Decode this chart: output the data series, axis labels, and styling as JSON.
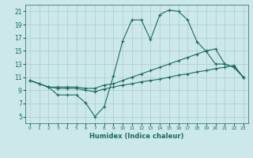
{
  "xlabel": "Humidex (Indice chaleur)",
  "background_color": "#cce8e8",
  "grid_color": "#aacccc",
  "line_color": "#1a6b5a",
  "xlim": [
    -0.5,
    23.5
  ],
  "ylim": [
    4,
    22
  ],
  "xticks": [
    0,
    1,
    2,
    3,
    4,
    5,
    6,
    7,
    8,
    9,
    10,
    11,
    12,
    13,
    14,
    15,
    16,
    17,
    18,
    19,
    20,
    21,
    22,
    23
  ],
  "yticks": [
    5,
    7,
    9,
    11,
    13,
    15,
    17,
    19,
    21
  ],
  "series1_x": [
    0,
    1,
    2,
    3,
    4,
    5,
    6,
    7,
    8,
    9,
    10,
    11,
    12,
    13,
    14,
    15,
    16,
    17,
    18,
    19,
    20,
    21,
    22,
    23
  ],
  "series1_y": [
    10.5,
    10.0,
    9.5,
    8.3,
    8.3,
    8.3,
    7.1,
    5.0,
    6.5,
    11.2,
    16.5,
    19.7,
    19.7,
    16.7,
    20.5,
    21.2,
    21.0,
    19.7,
    16.4,
    14.9,
    13.0,
    13.0,
    12.5,
    11.0
  ],
  "series2_x": [
    0,
    1,
    2,
    3,
    4,
    5,
    6,
    7,
    8,
    9,
    10,
    11,
    12,
    13,
    14,
    15,
    16,
    17,
    18,
    19,
    20,
    21,
    22,
    23
  ],
  "series2_y": [
    10.5,
    10.0,
    9.5,
    9.5,
    9.5,
    9.5,
    9.3,
    9.3,
    9.8,
    10.0,
    10.5,
    11.0,
    11.5,
    12.0,
    12.5,
    13.0,
    13.5,
    14.0,
    14.5,
    15.0,
    15.3,
    13.0,
    12.5,
    11.0
  ],
  "series3_x": [
    0,
    1,
    2,
    3,
    4,
    5,
    6,
    7,
    8,
    9,
    10,
    11,
    12,
    13,
    14,
    15,
    16,
    17,
    18,
    19,
    20,
    21,
    22,
    23
  ],
  "series3_y": [
    10.5,
    10.0,
    9.5,
    9.3,
    9.3,
    9.3,
    9.0,
    8.8,
    9.2,
    9.5,
    9.8,
    10.0,
    10.3,
    10.5,
    10.7,
    11.0,
    11.3,
    11.5,
    11.8,
    12.0,
    12.3,
    12.5,
    12.8,
    11.0
  ]
}
